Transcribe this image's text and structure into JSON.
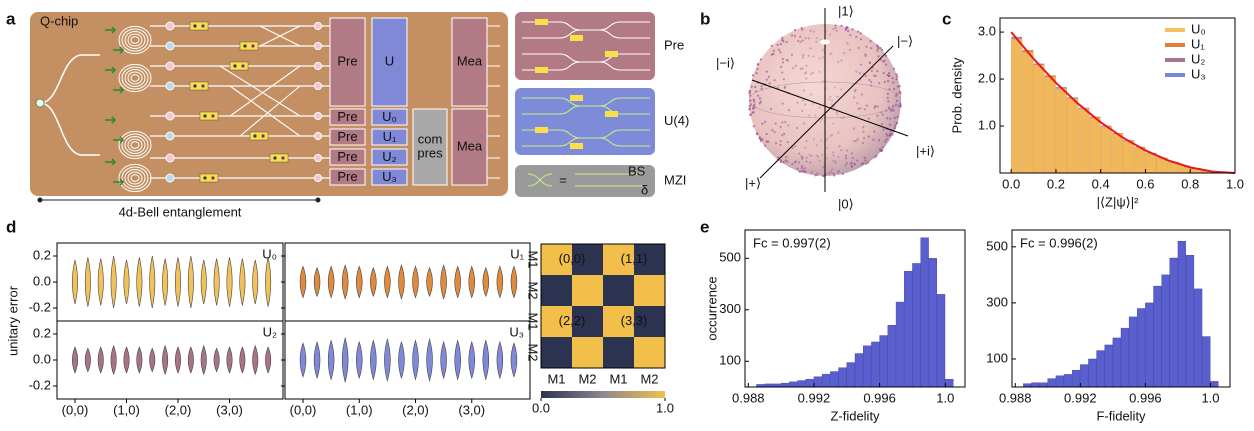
{
  "panel_labels": [
    "a",
    "b",
    "c",
    "d",
    "e"
  ],
  "diagram": {
    "chip_label": "Q-chip",
    "top_boxes": [
      "Pre",
      "U",
      "Mea"
    ],
    "pre_boxes": [
      "Pre",
      "Pre",
      "Pre",
      "Pre"
    ],
    "u_boxes": [
      "U₀",
      "U₁",
      "U₂",
      "U₃"
    ],
    "compress": [
      "com",
      "pres"
    ],
    "measure": "Mea",
    "entanglement": "4d-Bell entanglement",
    "insets": [
      "Pre",
      "U(4)",
      "MZI"
    ],
    "mzi_labels": [
      "=",
      "BS",
      "δ"
    ]
  },
  "bloch": {
    "labels": [
      "|1⟩",
      "|0⟩",
      "|−⟩",
      "|+⟩",
      "|−i⟩",
      "|+i⟩"
    ]
  },
  "chart_data": [
    {
      "type": "histogram",
      "xlabel": "|⟨Z|ψ⟩|²",
      "ylabel": "Prob. density",
      "bins": [
        0,
        0.05,
        0.1,
        0.15,
        0.2,
        0.25,
        0.3,
        0.35,
        0.4,
        0.45,
        0.5,
        0.55,
        0.6,
        0.65,
        0.7,
        0.75,
        0.8,
        0.85,
        0.9,
        0.95,
        1.0
      ],
      "series": [
        {
          "name": "U₀",
          "color": "#f5c15f",
          "values": [
            2.85,
            2.57,
            2.3,
            2.04,
            1.8,
            1.58,
            1.37,
            1.17,
            0.99,
            0.83,
            0.68,
            0.54,
            0.42,
            0.32,
            0.23,
            0.15,
            0.09,
            0.05,
            0.02,
            0.0
          ]
        },
        {
          "name": "U₁",
          "color": "#e0803a",
          "values": [
            2.8,
            2.62,
            2.27,
            2.08,
            1.76,
            1.6,
            1.34,
            1.2,
            0.97,
            0.85,
            0.66,
            0.56,
            0.4,
            0.33,
            0.22,
            0.16,
            0.08,
            0.05,
            0.02,
            0.0
          ]
        },
        {
          "name": "U₂",
          "color": "#a37590",
          "values": [
            2.9,
            2.55,
            2.33,
            2.01,
            1.83,
            1.55,
            1.39,
            1.15,
            1.01,
            0.81,
            0.7,
            0.52,
            0.43,
            0.31,
            0.24,
            0.14,
            0.1,
            0.04,
            0.02,
            0.0
          ]
        },
        {
          "name": "U₃",
          "color": "#7b86d6",
          "values": [
            2.83,
            2.6,
            2.28,
            2.06,
            1.78,
            1.61,
            1.36,
            1.18,
            0.98,
            0.84,
            0.67,
            0.55,
            0.41,
            0.33,
            0.23,
            0.15,
            0.09,
            0.05,
            0.01,
            0.0
          ]
        }
      ],
      "fit": {
        "color": "#e41a1c",
        "x": [
          0,
          0.1,
          0.2,
          0.3,
          0.4,
          0.5,
          0.6,
          0.7,
          0.8,
          0.9,
          1.0
        ],
        "values": [
          3.0,
          2.43,
          1.92,
          1.47,
          1.08,
          0.75,
          0.48,
          0.27,
          0.12,
          0.03,
          0
        ]
      },
      "xlim": [
        -0.05,
        1.0
      ],
      "xticks": [
        {
          "value": 0,
          "label": "0.0"
        },
        0.2,
        0.4,
        0.6,
        0.8,
        {
          "value": 1,
          "label": "1.0"
        }
      ],
      "ylim": [
        0,
        3.3
      ],
      "yticks": [
        {
          "value": 1,
          "label": "1.0"
        },
        {
          "value": 2,
          "label": "2.0"
        },
        {
          "value": 3,
          "label": "3.0"
        }
      ],
      "legend": "upper right"
    },
    {
      "type": "violin",
      "ylabel": "unitary error",
      "categories": [
        "(0,0)",
        null,
        null,
        null,
        "(1,0)",
        null,
        null,
        null,
        "(2,0)",
        null,
        null,
        null,
        "(3,0)",
        null,
        null,
        null
      ],
      "series": [
        {
          "name": "U₀",
          "color": "#f2c25a",
          "values": [
            0.17,
            0.19,
            0.18,
            0.2,
            0.17,
            0.19,
            0.2,
            0.18,
            0.19,
            0.2,
            0.17,
            0.18,
            0.19,
            0.18,
            0.17,
            0.19
          ]
        },
        {
          "name": "U₁",
          "color": "#e08a3e",
          "values": [
            0.12,
            0.11,
            0.12,
            0.13,
            0.12,
            0.11,
            0.12,
            0.13,
            0.12,
            0.11,
            0.13,
            0.12,
            0.12,
            0.11,
            0.12,
            0.12
          ]
        },
        {
          "name": "U₂",
          "color": "#a87482",
          "values": [
            0.1,
            0.09,
            0.1,
            0.11,
            0.1,
            0.1,
            0.09,
            0.11,
            0.1,
            0.1,
            0.11,
            0.09,
            0.1,
            0.1,
            0.11,
            0.1
          ]
        },
        {
          "name": "U₃",
          "color": "#7f89d8",
          "values": [
            0.13,
            0.14,
            0.15,
            0.17,
            0.14,
            0.15,
            0.16,
            0.14,
            0.15,
            0.16,
            0.14,
            0.15,
            0.14,
            0.15,
            0.14,
            0.13
          ]
        }
      ],
      "ylim": [
        -0.3,
        0.3
      ],
      "yticks": [
        -0.2,
        {
          "value": 0,
          "label": "0.0"
        },
        0.2
      ]
    },
    {
      "type": "heatmap",
      "rows": [
        "M1",
        "M2",
        "M1",
        "M2"
      ],
      "columns": [
        "M1",
        "M2",
        "M1",
        "M2"
      ],
      "values": [
        [
          1,
          0,
          1,
          0
        ],
        [
          0,
          1,
          0,
          1
        ],
        [
          1,
          0,
          1,
          0
        ],
        [
          0,
          1,
          0,
          1
        ]
      ],
      "annotations": [
        "(0,0)",
        "(1,1)",
        "(2,2)",
        "(3,3)"
      ],
      "colors": [
        "#2b3350",
        "#f2c04a"
      ],
      "colorbar_ticks": [
        {
          "value": 0,
          "label": "0.0"
        },
        {
          "value": 1,
          "label": "1.0"
        }
      ]
    },
    {
      "type": "histogram",
      "annotation": "Fc = 0.997(2)",
      "xlabel": "Z-fidelity",
      "ylabel": "occurrence",
      "color": "#5a5fd0",
      "bins": [
        0.9885,
        0.989,
        0.9895,
        0.99,
        0.9905,
        0.991,
        0.9915,
        0.992,
        0.9925,
        0.993,
        0.9935,
        0.994,
        0.9945,
        0.995,
        0.9955,
        0.996,
        0.9965,
        0.997,
        0.9975,
        0.998,
        0.9985,
        0.999,
        0.9995,
        1.0,
        1.0005
      ],
      "values": [
        10,
        12,
        12,
        15,
        20,
        25,
        30,
        40,
        50,
        60,
        75,
        95,
        130,
        160,
        175,
        200,
        240,
        330,
        450,
        480,
        580,
        500,
        360,
        30
      ],
      "xlim": [
        0.9878,
        1.0012
      ],
      "xticks": [
        0.988,
        0.992,
        0.996,
        {
          "value": 1,
          "label": "1.0"
        }
      ],
      "ylim": [
        0,
        610
      ],
      "yticks": [
        100,
        300,
        500
      ]
    },
    {
      "type": "histogram",
      "annotation": "Fc = 0.996(2)",
      "xlabel": "F-fidelity",
      "color": "#5a5fd0",
      "bins": [
        0.9885,
        0.989,
        0.9895,
        0.99,
        0.9905,
        0.991,
        0.9915,
        0.992,
        0.9925,
        0.993,
        0.9935,
        0.994,
        0.9945,
        0.995,
        0.9955,
        0.996,
        0.9965,
        0.997,
        0.9975,
        0.998,
        0.9985,
        0.999,
        0.9995,
        1.0,
        1.0005
      ],
      "values": [
        12,
        15,
        15,
        30,
        40,
        45,
        60,
        80,
        100,
        130,
        150,
        175,
        210,
        250,
        280,
        300,
        360,
        400,
        460,
        520,
        470,
        350,
        180,
        20
      ],
      "xlim": [
        0.9878,
        1.0012
      ],
      "xticks": [
        0.988,
        0.992,
        0.996,
        {
          "value": 1,
          "label": "1.0"
        }
      ],
      "ylim": [
        0,
        560
      ],
      "yticks": [
        100,
        300,
        500
      ]
    }
  ]
}
